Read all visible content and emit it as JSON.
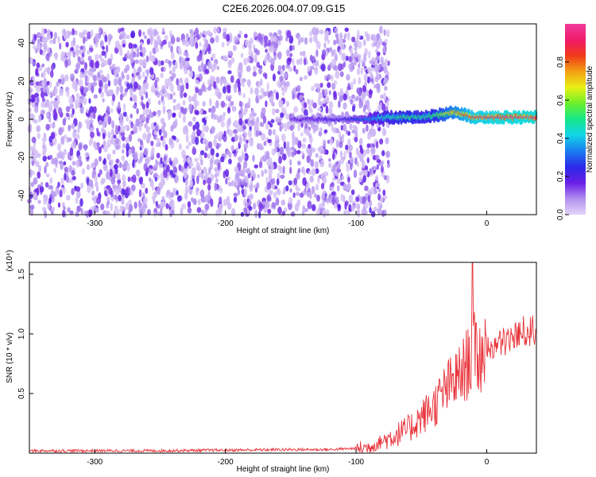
{
  "title": "C2E6.2026.004.07.09.G15",
  "chart_data": [
    {
      "type": "heatmap",
      "xlabel": "Height of straight line (km)",
      "ylabel": "Frequency (Hz)",
      "xlim": [
        -350,
        38
      ],
      "ylim": [
        -50,
        50
      ],
      "xticks": [
        -300,
        -200,
        -100,
        0
      ],
      "yticks": [
        -40,
        -20,
        0,
        20,
        40
      ],
      "colorbar": {
        "label": "Normalized spectral amplitude",
        "range": [
          0,
          1
        ],
        "ticks": [
          "0.0",
          "0.2",
          "0.4",
          "0.6",
          "0.8"
        ],
        "colors": [
          "#e4d4f8",
          "#b090ee",
          "#6a1ee6",
          "#2a2ae8",
          "#1a7cf0",
          "#12d4e8",
          "#14e88a",
          "#6cf02a",
          "#e8f014",
          "#f4a014",
          "#f03a1a",
          "#f01a6a",
          "#f23c9c"
        ]
      },
      "noise_region": {
        "x": [
          -350,
          -85
        ],
        "y": [
          -50,
          47
        ],
        "level": [
          0.02,
          0.2
        ]
      },
      "signal_track": {
        "x": [
          -150,
          -130,
          -110,
          -90,
          -80,
          -70,
          -60,
          -50,
          -40,
          -30,
          -25,
          -20,
          -15,
          -10,
          0,
          10,
          20,
          30,
          38
        ],
        "frequency": [
          0,
          0,
          0,
          0,
          1,
          1,
          1,
          1,
          2,
          3,
          4,
          3,
          2,
          1,
          1,
          1,
          1,
          1,
          1
        ],
        "level": [
          0.15,
          0.18,
          0.2,
          0.35,
          0.45,
          0.5,
          0.55,
          0.5,
          0.55,
          0.7,
          0.75,
          0.8,
          0.85,
          0.9,
          0.92,
          0.95,
          0.95,
          0.95,
          0.95
        ]
      }
    },
    {
      "type": "line",
      "xlabel": "Height of straight line (km)",
      "ylabel": "SNR (10 * v/v)",
      "multiplier_label": "(x10⁴)",
      "xlim": [
        -350,
        38
      ],
      "ylim": [
        0,
        1.6
      ],
      "xticks": [
        -300,
        -200,
        -100,
        0
      ],
      "yticks": [
        "0.5",
        "1.0",
        "1.5"
      ],
      "color": "#e8333a",
      "series": [
        {
          "x": [
            -350,
            -300,
            -250,
            -200,
            -150,
            -120,
            -100,
            -90,
            -80,
            -70,
            -60,
            -50,
            -40,
            -30,
            -20,
            -15,
            -10,
            -5,
            0,
            10,
            20,
            30,
            38
          ],
          "values": [
            0.02,
            0.02,
            0.02,
            0.025,
            0.03,
            0.03,
            0.04,
            0.05,
            0.1,
            0.15,
            0.2,
            0.3,
            0.4,
            0.55,
            0.65,
            0.75,
            0.85,
            0.8,
            0.9,
            0.95,
            1.0,
            1.05,
            1.08
          ],
          "spike": {
            "x": -11,
            "value": 1.6
          }
        }
      ]
    }
  ]
}
